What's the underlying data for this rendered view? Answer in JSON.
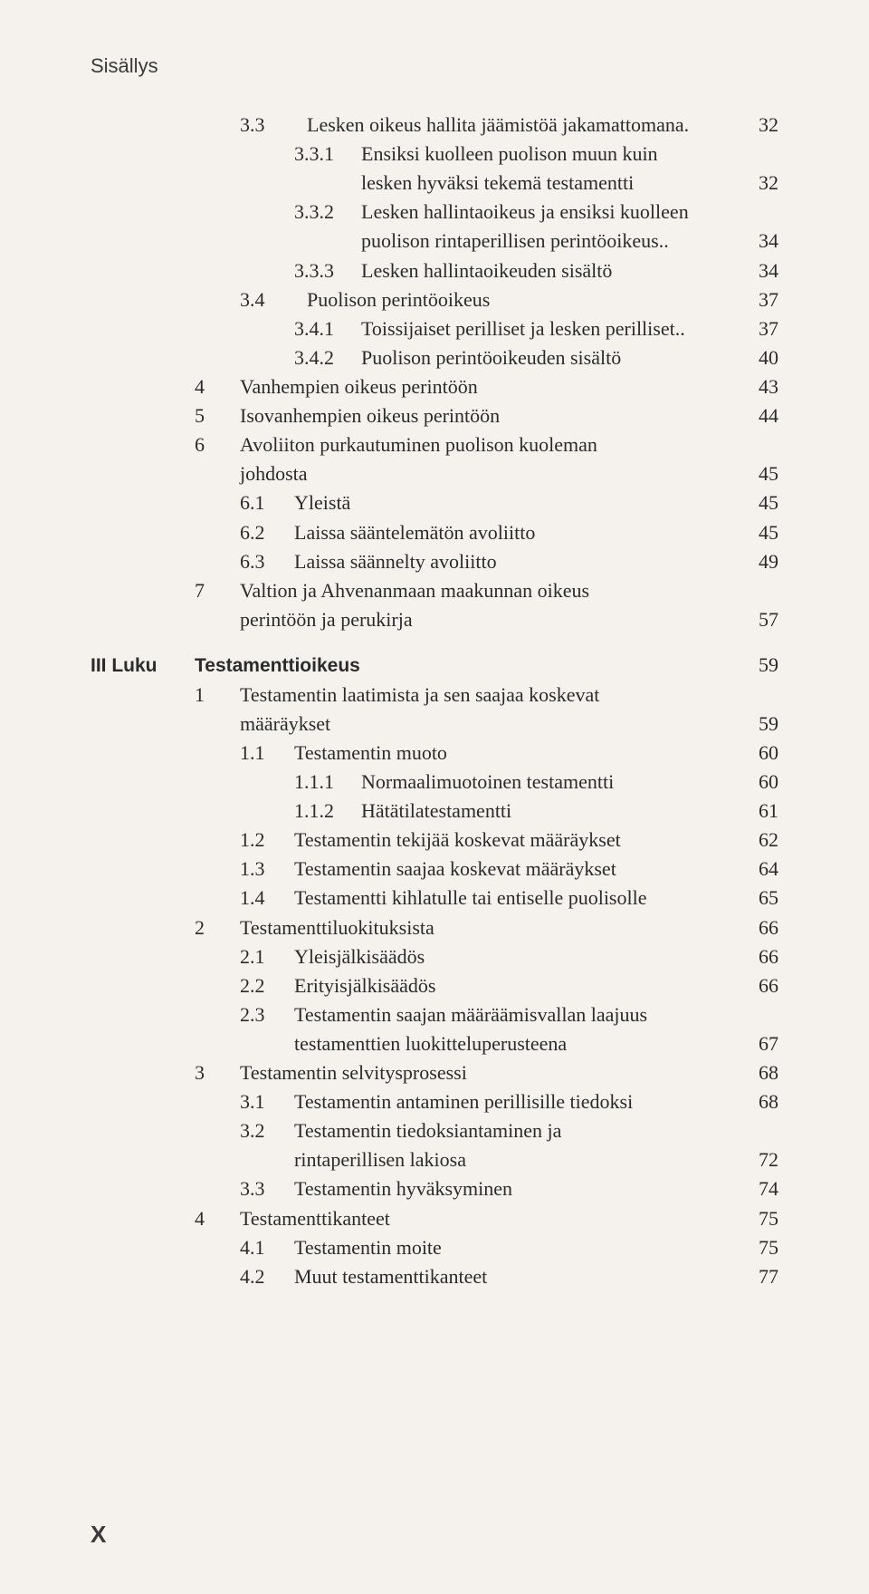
{
  "header": "Sisällys",
  "page_marker": "X",
  "colors": {
    "bg": "#f5f1ec",
    "text": "#2b2b2b"
  },
  "lines": [
    {
      "cls": "ind2",
      "numCls": "w3",
      "num": "3.3",
      "text": "Lesken oikeus hallita jäämistöä jakamattomana.",
      "pg": "32",
      "dots": false
    },
    {
      "cls": "ind3",
      "numCls": "w3",
      "num": "3.3.1",
      "text": "Ensiksi kuolleen puolison muun kuin",
      "pg": "",
      "dots": false
    },
    {
      "cls": "ind3",
      "numCls": "w3",
      "num": "",
      "text": "lesken hyväksi tekemä testamentti",
      "pg": "32",
      "dots": true
    },
    {
      "cls": "ind3",
      "numCls": "w3",
      "num": "3.3.2",
      "text": "Lesken hallintaoikeus ja ensiksi kuolleen",
      "pg": "",
      "dots": false
    },
    {
      "cls": "ind3",
      "numCls": "w3",
      "num": "",
      "text": "puolison rintaperillisen perintöoikeus.",
      "pg": "34",
      "dots": false,
      "dotstail": true
    },
    {
      "cls": "ind3",
      "numCls": "w3",
      "num": "3.3.3",
      "text": "Lesken hallintaoikeuden sisältö",
      "pg": "34",
      "dots": true
    },
    {
      "cls": "ind2",
      "numCls": "w3",
      "num": "3.4",
      "text": "Puolison perintöoikeus",
      "pg": "37",
      "dots": true
    },
    {
      "cls": "ind3",
      "numCls": "w3",
      "num": "3.4.1",
      "text": "Toissijaiset perilliset ja lesken perilliset.",
      "pg": "37",
      "dots": false,
      "dotstail": true
    },
    {
      "cls": "ind3",
      "numCls": "w3",
      "num": "3.4.2",
      "text": "Puolison perintöoikeuden sisältö",
      "pg": "40",
      "dots": true
    },
    {
      "cls": "ind1",
      "numCls": "w1",
      "num": "4",
      "text": "Vanhempien oikeus perintöön",
      "pg": "43",
      "dots": true
    },
    {
      "cls": "ind1",
      "numCls": "w1",
      "num": "5",
      "text": "Isovanhempien oikeus perintöön",
      "pg": "44",
      "dots": true
    },
    {
      "cls": "ind1",
      "numCls": "w1",
      "num": "6",
      "text": "Avoliiton purkautuminen puolison kuoleman",
      "pg": "",
      "dots": false
    },
    {
      "cls": "ind2",
      "numCls": "",
      "num": "",
      "text": "johdosta",
      "pg": "45",
      "dots": true
    },
    {
      "cls": "ind2",
      "numCls": "w2",
      "num": "6.1",
      "text": "Yleistä",
      "pg": "45",
      "dots": true
    },
    {
      "cls": "ind2",
      "numCls": "w2",
      "num": "6.2",
      "text": "Laissa sääntelemätön avoliitto",
      "pg": "45",
      "dots": true
    },
    {
      "cls": "ind2",
      "numCls": "w2",
      "num": "6.3",
      "text": "Laissa säännelty avoliitto",
      "pg": "49",
      "dots": true
    },
    {
      "cls": "ind1",
      "numCls": "w1",
      "num": "7",
      "text": "Valtion ja Ahvenanmaan maakunnan oikeus",
      "pg": "",
      "dots": false
    },
    {
      "cls": "ind2",
      "numCls": "",
      "num": "",
      "text": "perintöön ja perukirja",
      "pg": "57",
      "dots": true
    },
    {
      "cls": "ind-chap chapter-line",
      "numCls": "w-chap chapter-label",
      "num": "III Luku",
      "textCls": "chapter-title",
      "text": "Testamenttioikeus",
      "pg": "59",
      "dots": true,
      "gap": true
    },
    {
      "cls": "ind1",
      "numCls": "w1",
      "num": "1",
      "text": "Testamentin laatimista ja sen saajaa koskevat",
      "pg": "",
      "dots": false
    },
    {
      "cls": "ind2",
      "numCls": "",
      "num": "",
      "text": "määräykset",
      "pg": "59",
      "dots": true
    },
    {
      "cls": "ind2",
      "numCls": "w2",
      "num": "1.1",
      "text": "Testamentin muoto",
      "pg": "60",
      "dots": true
    },
    {
      "cls": "ind3",
      "numCls": "w3",
      "num": "1.1.1",
      "text": "Normaalimuotoinen testamentti",
      "pg": "60",
      "dots": true
    },
    {
      "cls": "ind3",
      "numCls": "w3",
      "num": "1.1.2",
      "text": "Hätätilatestamentti",
      "pg": "61",
      "dots": true
    },
    {
      "cls": "ind2",
      "numCls": "w2",
      "num": "1.2",
      "text": "Testamentin tekijää koskevat määräykset",
      "pg": "62",
      "dots": true
    },
    {
      "cls": "ind2",
      "numCls": "w2",
      "num": "1.3",
      "text": "Testamentin saajaa koskevat määräykset",
      "pg": "64",
      "dots": true
    },
    {
      "cls": "ind2",
      "numCls": "w2",
      "num": "1.4",
      "text": "Testamentti kihlatulle tai entiselle puolisolle",
      "pg": "65",
      "dots": true
    },
    {
      "cls": "ind1",
      "numCls": "w1",
      "num": "2",
      "text": "Testamenttiluokituksista",
      "pg": "66",
      "dots": true
    },
    {
      "cls": "ind2",
      "numCls": "w2",
      "num": "2.1",
      "text": "Yleisjälkisäädös",
      "pg": "66",
      "dots": true
    },
    {
      "cls": "ind2",
      "numCls": "w2",
      "num": "2.2",
      "text": "Erityisjälkisäädös",
      "pg": "66",
      "dots": true
    },
    {
      "cls": "ind2",
      "numCls": "w2",
      "num": "2.3",
      "text": "Testamentin saajan määräämisvallan laajuus",
      "pg": "",
      "dots": false
    },
    {
      "cls": "ind3",
      "numCls": "",
      "num": "",
      "text": "testamenttien luokitteluperusteena",
      "pg": "67",
      "dots": true
    },
    {
      "cls": "ind1",
      "numCls": "w1",
      "num": "3",
      "text": "Testamentin selvitysprosessi",
      "pg": "68",
      "dots": true
    },
    {
      "cls": "ind2",
      "numCls": "w2",
      "num": "3.1",
      "text": "Testamentin antaminen perillisille tiedoksi",
      "pg": "68",
      "dots": true
    },
    {
      "cls": "ind2",
      "numCls": "w2",
      "num": "3.2",
      "text": "Testamentin tiedoksiantaminen ja",
      "pg": "",
      "dots": false
    },
    {
      "cls": "ind3",
      "numCls": "",
      "num": "",
      "text": "rintaperillisen lakiosa",
      "pg": "72",
      "dots": true
    },
    {
      "cls": "ind2",
      "numCls": "w2",
      "num": "3.3",
      "text": "Testamentin hyväksyminen",
      "pg": "74",
      "dots": true
    },
    {
      "cls": "ind1",
      "numCls": "w1",
      "num": "4",
      "text": "Testamenttikanteet",
      "pg": "75",
      "dots": true
    },
    {
      "cls": "ind2",
      "numCls": "w2",
      "num": "4.1",
      "text": "Testamentin moite",
      "pg": "75",
      "dots": true
    },
    {
      "cls": "ind2",
      "numCls": "w2",
      "num": "4.2",
      "text": "Muut testamenttikanteet",
      "pg": "77",
      "dots": true
    }
  ]
}
